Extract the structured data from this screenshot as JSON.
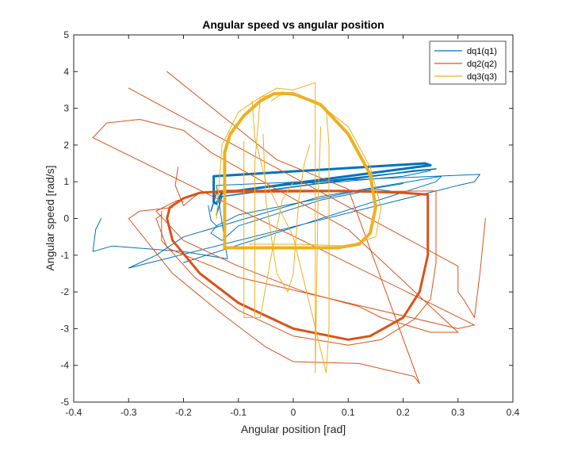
{
  "chart_data": {
    "type": "line",
    "title": "Angular speed vs angular position",
    "xlabel": "Angular position [rad]",
    "ylabel": "Angular speed [rad/s]",
    "xlim": [
      -0.4,
      0.4
    ],
    "ylim": [
      -5,
      5
    ],
    "xticks": [
      -0.4,
      -0.3,
      -0.2,
      -0.1,
      0,
      0.1,
      0.2,
      0.3,
      0.4
    ],
    "yticks": [
      -5,
      -4,
      -3,
      -2,
      -1,
      0,
      1,
      2,
      3,
      4,
      5
    ],
    "xtick_labels": [
      "-0.4",
      "-0.3",
      "-0.2",
      "-0.1",
      "0",
      "0.1",
      "0.2",
      "0.3",
      "0.4"
    ],
    "ytick_labels": [
      "-5",
      "-4",
      "-3",
      "-2",
      "-1",
      "0",
      "1",
      "2",
      "3",
      "4",
      "5"
    ],
    "grid": false,
    "legend_position": "top-right",
    "series": [
      {
        "name": "dq1(q1)",
        "color": "#0072BD",
        "paths": [
          {
            "width": 1,
            "points": [
              [
                -0.35,
                0.0
              ],
              [
                -0.36,
                -0.3
              ],
              [
                -0.365,
                -0.9
              ],
              [
                -0.33,
                -0.75
              ],
              [
                -0.2,
                -0.9
              ],
              [
                -0.12,
                -1.1
              ],
              [
                -0.14,
                0.9
              ],
              [
                0.34,
                1.2
              ],
              [
                0.33,
                1.0
              ],
              [
                0.3,
                0.9
              ],
              [
                -0.3,
                -1.35
              ],
              [
                -0.25,
                -1.0
              ],
              [
                -0.2,
                -0.5
              ],
              [
                0.05,
                0.6
              ],
              [
                0.27,
                1.15
              ],
              [
                0.26,
                1.0
              ],
              [
                -0.2,
                -1.2
              ]
            ]
          },
          {
            "width": 3,
            "points": [
              [
                -0.145,
                1.15
              ],
              [
                -0.145,
                0.45
              ],
              [
                -0.14,
                0.4
              ],
              [
                -0.13,
                0.7
              ],
              [
                0.25,
                1.45
              ],
              [
                0.24,
                1.5
              ],
              [
                -0.145,
                1.15
              ]
            ]
          },
          {
            "width": 1.5,
            "points": [
              [
                -0.15,
                0.2
              ],
              [
                -0.14,
                0.7
              ],
              [
                0.26,
                1.35
              ],
              [
                0.22,
                1.3
              ],
              [
                -0.13,
                0.6
              ],
              [
                -0.14,
                0.1
              ]
            ]
          },
          {
            "width": 1,
            "points": [
              [
                -0.14,
                -0.2
              ],
              [
                -0.15,
                -0.4
              ],
              [
                -0.13,
                -0.6
              ],
              [
                -0.1,
                -0.2
              ],
              [
                0.05,
                0.5
              ],
              [
                0.15,
                0.8
              ],
              [
                0.2,
                0.7
              ]
            ]
          },
          {
            "width": 1,
            "points": [
              [
                -0.155,
                0.35
              ],
              [
                -0.15,
                -0.05
              ],
              [
                -0.14,
                -0.2
              ],
              [
                -0.1,
                0.1
              ],
              [
                0.1,
                0.7
              ],
              [
                0.2,
                0.95
              ]
            ]
          },
          {
            "width": 1,
            "points": [
              [
                -0.05,
                0.85
              ],
              [
                0.0,
                1.0
              ],
              [
                0.05,
                0.95
              ],
              [
                0.2,
                1.15
              ],
              [
                0.25,
                1.3
              ]
            ]
          }
        ]
      },
      {
        "name": "dq2(q2)",
        "color": "#D95319",
        "paths": [
          {
            "width": 3,
            "points": [
              [
                -0.23,
                0.0
              ],
              [
                -0.225,
                0.3
              ],
              [
                -0.2,
                0.55
              ],
              [
                -0.17,
                0.7
              ],
              [
                -0.12,
                0.75
              ],
              [
                0.0,
                0.75
              ],
              [
                0.1,
                0.75
              ],
              [
                0.2,
                0.7
              ],
              [
                0.245,
                0.65
              ],
              [
                0.245,
                -1.0
              ],
              [
                0.23,
                -2.0
              ],
              [
                0.2,
                -2.7
              ],
              [
                0.14,
                -3.2
              ],
              [
                0.1,
                -3.3
              ],
              [
                0.0,
                -3.0
              ],
              [
                -0.1,
                -2.3
              ],
              [
                -0.17,
                -1.5
              ],
              [
                -0.22,
                -0.6
              ],
              [
                -0.23,
                0.0
              ]
            ]
          },
          {
            "width": 1,
            "points": [
              [
                -0.3,
                3.55
              ],
              [
                0.3,
                -1.3
              ],
              [
                0.3,
                -2.0
              ],
              [
                0.31,
                -2.2
              ],
              [
                0.33,
                -2.7
              ],
              [
                0.34,
                -1.5
              ],
              [
                0.35,
                0.0
              ]
            ]
          },
          {
            "width": 1,
            "points": [
              [
                -0.23,
                4.0
              ],
              [
                -0.03,
                1.6
              ],
              [
                0.1,
                0.8
              ],
              [
                0.23,
                -4.5
              ],
              [
                0.22,
                -4.3
              ],
              [
                0.12,
                -3.95
              ],
              [
                0.0,
                -3.9
              ],
              [
                -0.05,
                -3.5
              ],
              [
                -0.13,
                -2.6
              ],
              [
                -0.22,
                -1.5
              ],
              [
                -0.3,
                0.0
              ],
              [
                -0.28,
                0.2
              ],
              [
                -0.22,
                0.3
              ]
            ]
          },
          {
            "width": 1,
            "points": [
              [
                -0.365,
                2.2
              ],
              [
                -0.34,
                2.6
              ],
              [
                -0.28,
                2.7
              ],
              [
                -0.2,
                2.4
              ],
              [
                -0.15,
                1.8
              ],
              [
                0.1,
                -0.3
              ],
              [
                0.3,
                -3.1
              ],
              [
                0.25,
                -3.1
              ],
              [
                0.16,
                -2.7
              ],
              [
                0.12,
                -2.4
              ],
              [
                0.02,
                -2.0
              ],
              [
                -0.1,
                -1.3
              ],
              [
                -0.2,
                -0.6
              ],
              [
                -0.25,
                0.2
              ],
              [
                -0.21,
                0.5
              ],
              [
                -0.2,
                0.45
              ]
            ]
          },
          {
            "width": 1,
            "points": [
              [
                -0.21,
                1.4
              ],
              [
                -0.215,
                0.9
              ],
              [
                -0.2,
                0.35
              ],
              [
                -0.18,
                0.6
              ],
              [
                -0.17,
                0.7
              ],
              [
                0.26,
                0.75
              ],
              [
                0.26,
                -1.2
              ],
              [
                0.25,
                -2.2
              ],
              [
                0.22,
                -2.75
              ],
              [
                0.16,
                -3.3
              ],
              [
                0.1,
                -3.45
              ],
              [
                0.0,
                -3.2
              ],
              [
                -0.1,
                -2.5
              ],
              [
                -0.18,
                -1.6
              ],
              [
                -0.24,
                -0.6
              ],
              [
                -0.24,
                0.2
              ]
            ]
          },
          {
            "width": 1,
            "points": [
              [
                -0.365,
                2.2
              ],
              [
                0.33,
                -2.9
              ],
              [
                0.3,
                -3.0
              ],
              [
                -0.1,
                -1.6
              ],
              [
                -0.23,
                -0.8
              ],
              [
                -0.25,
                0.0
              ],
              [
                -0.24,
                0.1
              ]
            ]
          }
        ]
      },
      {
        "name": "dq3(q3)",
        "color": "#EDB120",
        "paths": [
          {
            "width": 4,
            "points": [
              [
                -0.125,
                -0.8
              ],
              [
                -0.125,
                1.8
              ],
              [
                -0.115,
                2.3
              ],
              [
                -0.09,
                2.8
              ],
              [
                -0.06,
                3.2
              ],
              [
                -0.035,
                3.4
              ],
              [
                0.0,
                3.4
              ],
              [
                0.05,
                3.1
              ],
              [
                0.1,
                2.3
              ],
              [
                0.14,
                1.2
              ],
              [
                0.15,
                0.3
              ],
              [
                0.14,
                -0.4
              ],
              [
                0.12,
                -0.7
              ],
              [
                0.08,
                -0.8
              ],
              [
                -0.02,
                -0.8
              ],
              [
                -0.125,
                -0.8
              ]
            ]
          },
          {
            "width": 1,
            "points": [
              [
                -0.075,
                3.2
              ],
              [
                -0.07,
                2.2
              ],
              [
                -0.05,
                1.0
              ],
              [
                0.0,
                -0.5
              ],
              [
                0.06,
                -4.2
              ],
              [
                0.065,
                -3.0
              ],
              [
                0.065,
                2.0
              ],
              [
                0.06,
                3.0
              ],
              [
                0.04,
                3.2
              ],
              [
                0.02,
                3.3
              ],
              [
                -0.02,
                3.4
              ],
              [
                -0.04,
                3.2
              ]
            ]
          },
          {
            "width": 1,
            "points": [
              [
                -0.07,
                -2.7
              ],
              [
                -0.07,
                1.5
              ],
              [
                -0.06,
                3.3
              ],
              [
                -0.03,
                3.55
              ],
              [
                0.0,
                3.5
              ],
              [
                0.04,
                3.7
              ],
              [
                0.04,
                -4.2
              ],
              [
                0.045,
                0.5
              ],
              [
                0.05,
                2.5
              ]
            ]
          },
          {
            "width": 1,
            "points": [
              [
                -0.14,
                0.0
              ],
              [
                -0.13,
                2.0
              ],
              [
                -0.1,
                2.9
              ],
              [
                -0.06,
                3.3
              ],
              [
                -0.02,
                3.45
              ],
              [
                0.04,
                3.2
              ],
              [
                0.1,
                2.5
              ],
              [
                0.14,
                1.4
              ],
              [
                0.16,
                0.3
              ],
              [
                0.15,
                -0.5
              ],
              [
                0.1,
                -0.75
              ],
              [
                0.0,
                -0.7
              ],
              [
                -0.08,
                -0.7
              ]
            ]
          },
          {
            "width": 1,
            "points": [
              [
                -0.055,
                2.3
              ],
              [
                -0.05,
                0.5
              ],
              [
                -0.03,
                -1.5
              ],
              [
                -0.01,
                -2.0
              ],
              [
                0.0,
                -1.5
              ],
              [
                0.01,
                0.5
              ],
              [
                0.02,
                1.5
              ],
              [
                0.03,
                2.0
              ]
            ]
          },
          {
            "width": 1,
            "points": [
              [
                -0.09,
                2.1
              ],
              [
                -0.09,
                -2.7
              ],
              [
                -0.06,
                -2.7
              ],
              [
                -0.04,
                -1.0
              ],
              [
                -0.02,
                0.5
              ],
              [
                0.0,
                1.0
              ]
            ]
          }
        ]
      }
    ]
  }
}
